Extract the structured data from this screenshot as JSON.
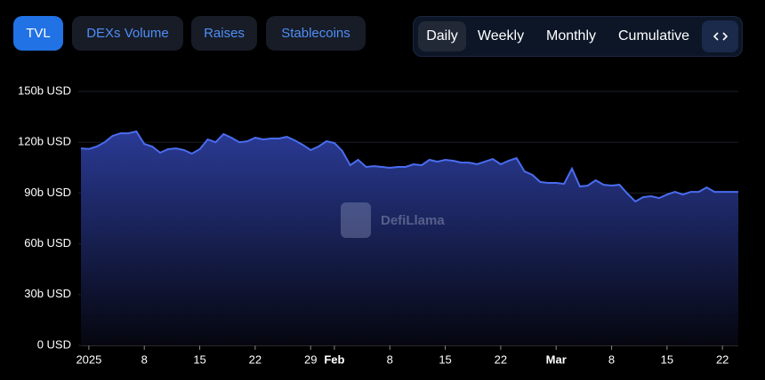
{
  "tabs": [
    "TVL",
    "DEXs Volume",
    "Raises",
    "Stablecoins"
  ],
  "periods": [
    "Daily",
    "Weekly",
    "Monthly",
    "Cumulative"
  ],
  "watermark": "DefiLlama",
  "chart_data": {
    "type": "area",
    "x": [
      "2024-12-31",
      "2025-01-01",
      "2025-01-02",
      "2025-01-03",
      "2025-01-04",
      "2025-01-05",
      "2025-01-06",
      "2025-01-07",
      "2025-01-08",
      "2025-01-09",
      "2025-01-10",
      "2025-01-11",
      "2025-01-12",
      "2025-01-13",
      "2025-01-14",
      "2025-01-15",
      "2025-01-16",
      "2025-01-17",
      "2025-01-18",
      "2025-01-19",
      "2025-01-20",
      "2025-01-21",
      "2025-01-22",
      "2025-01-23",
      "2025-01-24",
      "2025-01-25",
      "2025-01-26",
      "2025-01-27",
      "2025-01-28",
      "2025-01-29",
      "2025-01-30",
      "2025-01-31",
      "2025-02-01",
      "2025-02-02",
      "2025-02-03",
      "2025-02-04",
      "2025-02-05",
      "2025-02-06",
      "2025-02-07",
      "2025-02-08",
      "2025-02-09",
      "2025-02-10",
      "2025-02-11",
      "2025-02-12",
      "2025-02-13",
      "2025-02-14",
      "2025-02-15",
      "2025-02-16",
      "2025-02-17",
      "2025-02-18",
      "2025-02-19",
      "2025-02-20",
      "2025-02-21",
      "2025-02-22",
      "2025-02-23",
      "2025-02-24",
      "2025-02-25",
      "2025-02-26",
      "2025-02-27",
      "2025-02-28",
      "2025-03-01",
      "2025-03-02",
      "2025-03-03",
      "2025-03-04",
      "2025-03-05",
      "2025-03-06",
      "2025-03-07",
      "2025-03-08",
      "2025-03-09",
      "2025-03-10",
      "2025-03-11",
      "2025-03-12",
      "2025-03-13",
      "2025-03-14",
      "2025-03-15",
      "2025-03-16",
      "2025-03-17",
      "2025-03-18",
      "2025-03-19",
      "2025-03-20",
      "2025-03-21",
      "2025-03-22",
      "2025-03-23",
      "2025-03-24"
    ],
    "series": [
      {
        "name": "TVL",
        "color": "#4a6cf0",
        "axis": "y",
        "values": [
          116.4,
          116,
          117.5,
          120,
          123.8,
          125.3,
          125.3,
          126.4,
          119,
          117.5,
          113.8,
          115.9,
          116.4,
          115.4,
          113.3,
          115.9,
          121.7,
          120,
          124.8,
          122.7,
          120,
          120.6,
          122.7,
          121.7,
          122.2,
          122.2,
          123.2,
          121.1,
          118.5,
          115.4,
          117.5,
          120.6,
          119.6,
          114.8,
          106.4,
          109.6,
          105.4,
          105.9,
          105.4,
          104.9,
          105.4,
          105.4,
          107,
          106.4,
          109.6,
          108.5,
          109.6,
          109.1,
          108,
          108,
          107,
          108.5,
          110.1,
          107,
          109.1,
          110.6,
          102.8,
          100.7,
          96.5,
          96,
          96,
          95.4,
          104.4,
          93.9,
          94.4,
          97.5,
          94.9,
          94.4,
          94.9,
          89.7,
          85,
          87.6,
          88.1,
          87,
          89.1,
          90.7,
          89.1,
          90.7,
          90.7,
          93.3,
          90.7,
          90.7,
          90.7,
          90.7
        ]
      }
    ],
    "xlim": [
      "2024-12-31",
      "2025-03-24"
    ],
    "xticks": [
      {
        "value": "2025-01-01",
        "label": "2025"
      },
      {
        "value": "2025-01-08",
        "label": "8"
      },
      {
        "value": "2025-01-15",
        "label": "15"
      },
      {
        "value": "2025-01-22",
        "label": "22"
      },
      {
        "value": "2025-01-29",
        "label": "29"
      },
      {
        "value": "2025-02-01",
        "label": "Feb"
      },
      {
        "value": "2025-02-08",
        "label": "8"
      },
      {
        "value": "2025-02-15",
        "label": "15"
      },
      {
        "value": "2025-02-22",
        "label": "22"
      },
      {
        "value": "2025-03-01",
        "label": "Mar"
      },
      {
        "value": "2025-03-08",
        "label": "8"
      },
      {
        "value": "2025-03-15",
        "label": "15"
      },
      {
        "value": "2025-03-22",
        "label": "22"
      }
    ],
    "ylim": [
      0,
      150
    ],
    "yticks": [
      {
        "value": 0,
        "label": "0 USD"
      },
      {
        "value": 30,
        "label": "30b USD"
      },
      {
        "value": 60,
        "label": "60b USD"
      },
      {
        "value": 90,
        "label": "90b USD"
      },
      {
        "value": 120,
        "label": "120b USD"
      },
      {
        "value": 150,
        "label": "150b USD"
      }
    ],
    "grid": true
  }
}
